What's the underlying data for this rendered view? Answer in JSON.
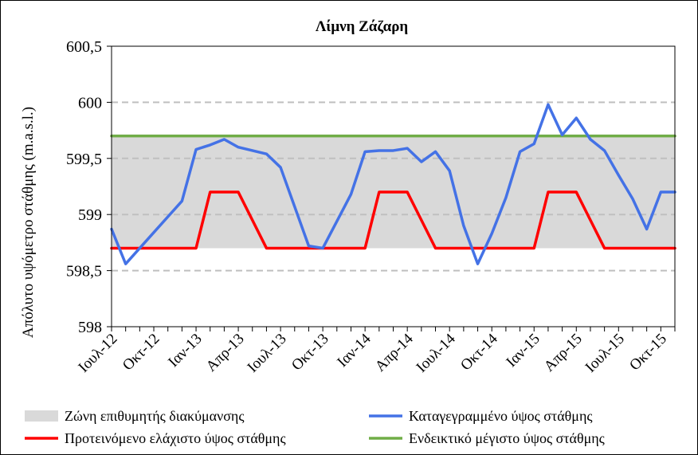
{
  "chart_data": {
    "type": "line",
    "title": "Λίμνη Ζάζαρη",
    "ylabel": "Απόλυτο υψόμετρο στάθμης (m.a.s.l.)",
    "xlabel": "",
    "ylim": [
      598,
      600.5
    ],
    "yticks": [
      598,
      598.5,
      599,
      599.5,
      600,
      600.5
    ],
    "ytick_labels": [
      "598",
      "598,5",
      "599",
      "599,5",
      "600",
      "600,5"
    ],
    "x_tick_labels": [
      "Ιουλ-12",
      "Οκτ-12",
      "Ιαν-13",
      "Απρ-13",
      "Ιουλ-13",
      "Οκτ-13",
      "Ιαν-14",
      "Απρ-14",
      "Ιουλ-14",
      "Οκτ-14",
      "Ιαν-15",
      "Απρ-15",
      "Ιουλ-15",
      "Οκτ-15"
    ],
    "x_unit": "month index starting Ιουλ-12",
    "grid": "horizontal dashed",
    "legend_position": "bottom",
    "series": [
      {
        "name": "Ζώνη επιθυμητής διακύμανσης",
        "kind": "band",
        "color": "#d9d9d9",
        "lower": [
          598.7,
          598.7,
          598.7,
          598.7,
          598.7,
          598.7,
          598.7,
          598.7,
          598.7,
          598.7,
          598.7,
          598.7,
          598.7,
          598.7,
          598.7,
          598.7,
          598.7,
          598.7,
          598.7,
          598.7,
          598.7,
          598.7,
          598.7,
          598.7,
          598.7,
          598.7,
          598.7,
          598.7,
          598.7,
          598.7,
          598.7,
          598.7,
          598.7,
          598.7,
          598.7,
          598.7,
          598.7,
          598.7,
          598.7,
          598.7,
          598.7
        ],
        "upper": [
          599.7,
          599.7,
          599.7,
          599.7,
          599.7,
          599.7,
          599.7,
          599.7,
          599.7,
          599.7,
          599.7,
          599.7,
          599.7,
          599.7,
          599.7,
          599.7,
          599.7,
          599.7,
          599.7,
          599.7,
          599.7,
          599.7,
          599.7,
          599.7,
          599.7,
          599.7,
          599.7,
          599.7,
          599.7,
          599.7,
          599.7,
          599.7,
          599.7,
          599.7,
          599.7,
          599.7,
          599.7,
          599.7,
          599.7,
          599.7,
          599.7
        ]
      },
      {
        "name": "Καταγεγραμμένο ύψος στάθμης",
        "kind": "line",
        "color": "#4472e6",
        "x": [
          0,
          1,
          2,
          3,
          4,
          5,
          6,
          7,
          8,
          9,
          10,
          11,
          12,
          13,
          14,
          15,
          16,
          17,
          18,
          19,
          20,
          21,
          22,
          23,
          24,
          25,
          26,
          27,
          28,
          29,
          30,
          31,
          32,
          33,
          34,
          35,
          36,
          37,
          38,
          39,
          40
        ],
        "values": [
          598.87,
          598.56,
          598.7,
          598.84,
          598.98,
          599.12,
          599.58,
          599.62,
          599.67,
          599.6,
          599.57,
          599.54,
          599.42,
          599.07,
          598.72,
          598.7,
          598.94,
          599.18,
          599.56,
          599.57,
          599.57,
          599.59,
          599.47,
          599.56,
          599.39,
          598.9,
          598.56,
          598.83,
          599.15,
          599.56,
          599.63,
          599.98,
          599.71,
          599.86,
          599.67,
          599.57,
          599.35,
          599.14,
          598.87,
          599.2,
          599.2
        ]
      },
      {
        "name": "Προτεινόμενο ελάχιστο ύψος στάθμης",
        "kind": "line",
        "color": "#ff0000",
        "x": [
          0,
          1,
          2,
          3,
          4,
          5,
          6,
          7,
          8,
          9,
          10,
          11,
          12,
          13,
          14,
          15,
          16,
          17,
          18,
          19,
          20,
          21,
          22,
          23,
          24,
          25,
          26,
          27,
          28,
          29,
          30,
          31,
          32,
          33,
          34,
          35,
          36,
          37,
          38,
          39,
          40
        ],
        "values": [
          598.7,
          598.7,
          598.7,
          598.7,
          598.7,
          598.7,
          598.7,
          599.2,
          599.2,
          599.2,
          598.95,
          598.7,
          598.7,
          598.7,
          598.7,
          598.7,
          598.7,
          598.7,
          598.7,
          599.2,
          599.2,
          599.2,
          598.95,
          598.7,
          598.7,
          598.7,
          598.7,
          598.7,
          598.7,
          598.7,
          598.7,
          599.2,
          599.2,
          599.2,
          598.95,
          598.7,
          598.7,
          598.7,
          598.7,
          598.7,
          598.7
        ]
      },
      {
        "name": "Ενδεικτικό μέγιστο ύψος στάθμης",
        "kind": "line",
        "color": "#70ad47",
        "x": [
          0,
          40
        ],
        "values": [
          599.7,
          599.7
        ]
      }
    ]
  }
}
